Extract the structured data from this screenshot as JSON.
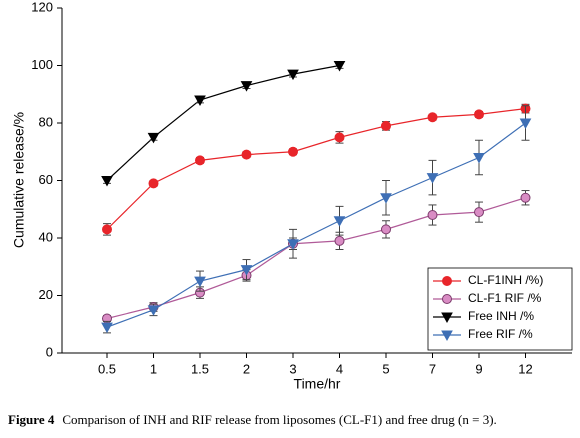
{
  "chart_data": {
    "type": "line",
    "xlabel": "Time/hr",
    "ylabel": "Cumulative release/%",
    "categories": [
      "0.5",
      "1",
      "1.5",
      "2",
      "3",
      "4",
      "5",
      "7",
      "9",
      "12"
    ],
    "series": [
      {
        "name": "CL-F1INH /%)",
        "color": "#e8252a",
        "marker": "circle",
        "values": [
          43,
          59,
          67,
          69,
          70,
          75,
          79,
          82,
          83,
          85
        ],
        "errors": [
          2,
          1,
          1,
          1,
          1,
          2,
          1.5,
          1,
          1,
          1.5
        ]
      },
      {
        "name": "CL-F1 RIF /%",
        "color": "#d98cc4",
        "marker": "circle",
        "values": [
          12,
          16,
          21,
          27,
          38,
          39,
          43,
          48,
          49,
          54
        ],
        "errors": [
          1,
          1.5,
          2,
          2,
          2,
          3,
          3,
          3.5,
          3.5,
          2.5
        ]
      },
      {
        "name": "Free INH /%",
        "color": "#000000",
        "marker": "triangle-down",
        "values": [
          60,
          75,
          88,
          93,
          97,
          100,
          null,
          null,
          null,
          null
        ],
        "errors": [
          1,
          1,
          1,
          1,
          1,
          1,
          null,
          null,
          null,
          null
        ]
      },
      {
        "name": "Free RIF /%",
        "color": "#3e6fb5",
        "marker": "triangle-down",
        "values": [
          9,
          15,
          25,
          29,
          38,
          46,
          54,
          61,
          68,
          80
        ],
        "errors": [
          2,
          2,
          3.5,
          3.5,
          5,
          5,
          6,
          6,
          6,
          6
        ]
      }
    ],
    "ylim": [
      0,
      120
    ],
    "yticks": [
      0,
      20,
      40,
      60,
      80,
      100,
      120
    ],
    "legend": "lower right",
    "caption_label": "Figure 4",
    "caption": "Comparison of INH and RIF release from liposomes (CL-F1) and free drug (n = 3)."
  }
}
